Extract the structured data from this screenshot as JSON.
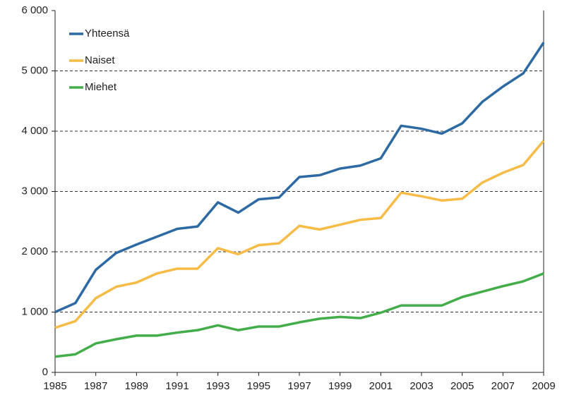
{
  "chart_data": {
    "type": "line",
    "x": [
      1985,
      1986,
      1987,
      1988,
      1989,
      1990,
      1991,
      1992,
      1993,
      1994,
      1995,
      1996,
      1997,
      1998,
      1999,
      2000,
      2001,
      2002,
      2003,
      2004,
      2005,
      2006,
      2007,
      2008,
      2009
    ],
    "series": [
      {
        "name": "Yhteensä",
        "color": "#2d6aa3",
        "values": [
          1000,
          1150,
          1700,
          1980,
          2120,
          2250,
          2380,
          2420,
          2820,
          2650,
          2870,
          2900,
          3240,
          3270,
          3380,
          3430,
          3550,
          4090,
          4040,
          3960,
          4130,
          4490,
          4740,
          4960,
          5470
        ]
      },
      {
        "name": "Naiset",
        "color": "#f6bc47",
        "values": [
          740,
          850,
          1230,
          1420,
          1490,
          1640,
          1720,
          1720,
          2060,
          1960,
          2110,
          2140,
          2430,
          2370,
          2450,
          2530,
          2560,
          2980,
          2920,
          2850,
          2880,
          3150,
          3310,
          3440,
          3840
        ]
      },
      {
        "name": "Miehet",
        "color": "#43ad4a",
        "values": [
          260,
          300,
          480,
          550,
          610,
          610,
          660,
          700,
          780,
          700,
          760,
          760,
          830,
          890,
          920,
          900,
          990,
          1110,
          1110,
          1110,
          1250,
          1340,
          1430,
          1510,
          1640
        ]
      }
    ],
    "xlim": [
      1985,
      2009
    ],
    "xticks": [
      1985,
      1987,
      1989,
      1991,
      1993,
      1995,
      1997,
      1999,
      2001,
      2003,
      2005,
      2007,
      2009
    ],
    "ylim": [
      0,
      6000
    ],
    "yticks": [
      0,
      {
        "value": 1000,
        "label": "1 000"
      },
      {
        "value": 2000,
        "label": "2 000"
      },
      {
        "value": 3000,
        "label": "3 000"
      },
      {
        "value": 4000,
        "label": "4 000"
      },
      {
        "value": 5000,
        "label": "5 000"
      },
      {
        "value": 6000,
        "label": "6 000"
      }
    ],
    "grid": true,
    "legend": "upper left"
  }
}
